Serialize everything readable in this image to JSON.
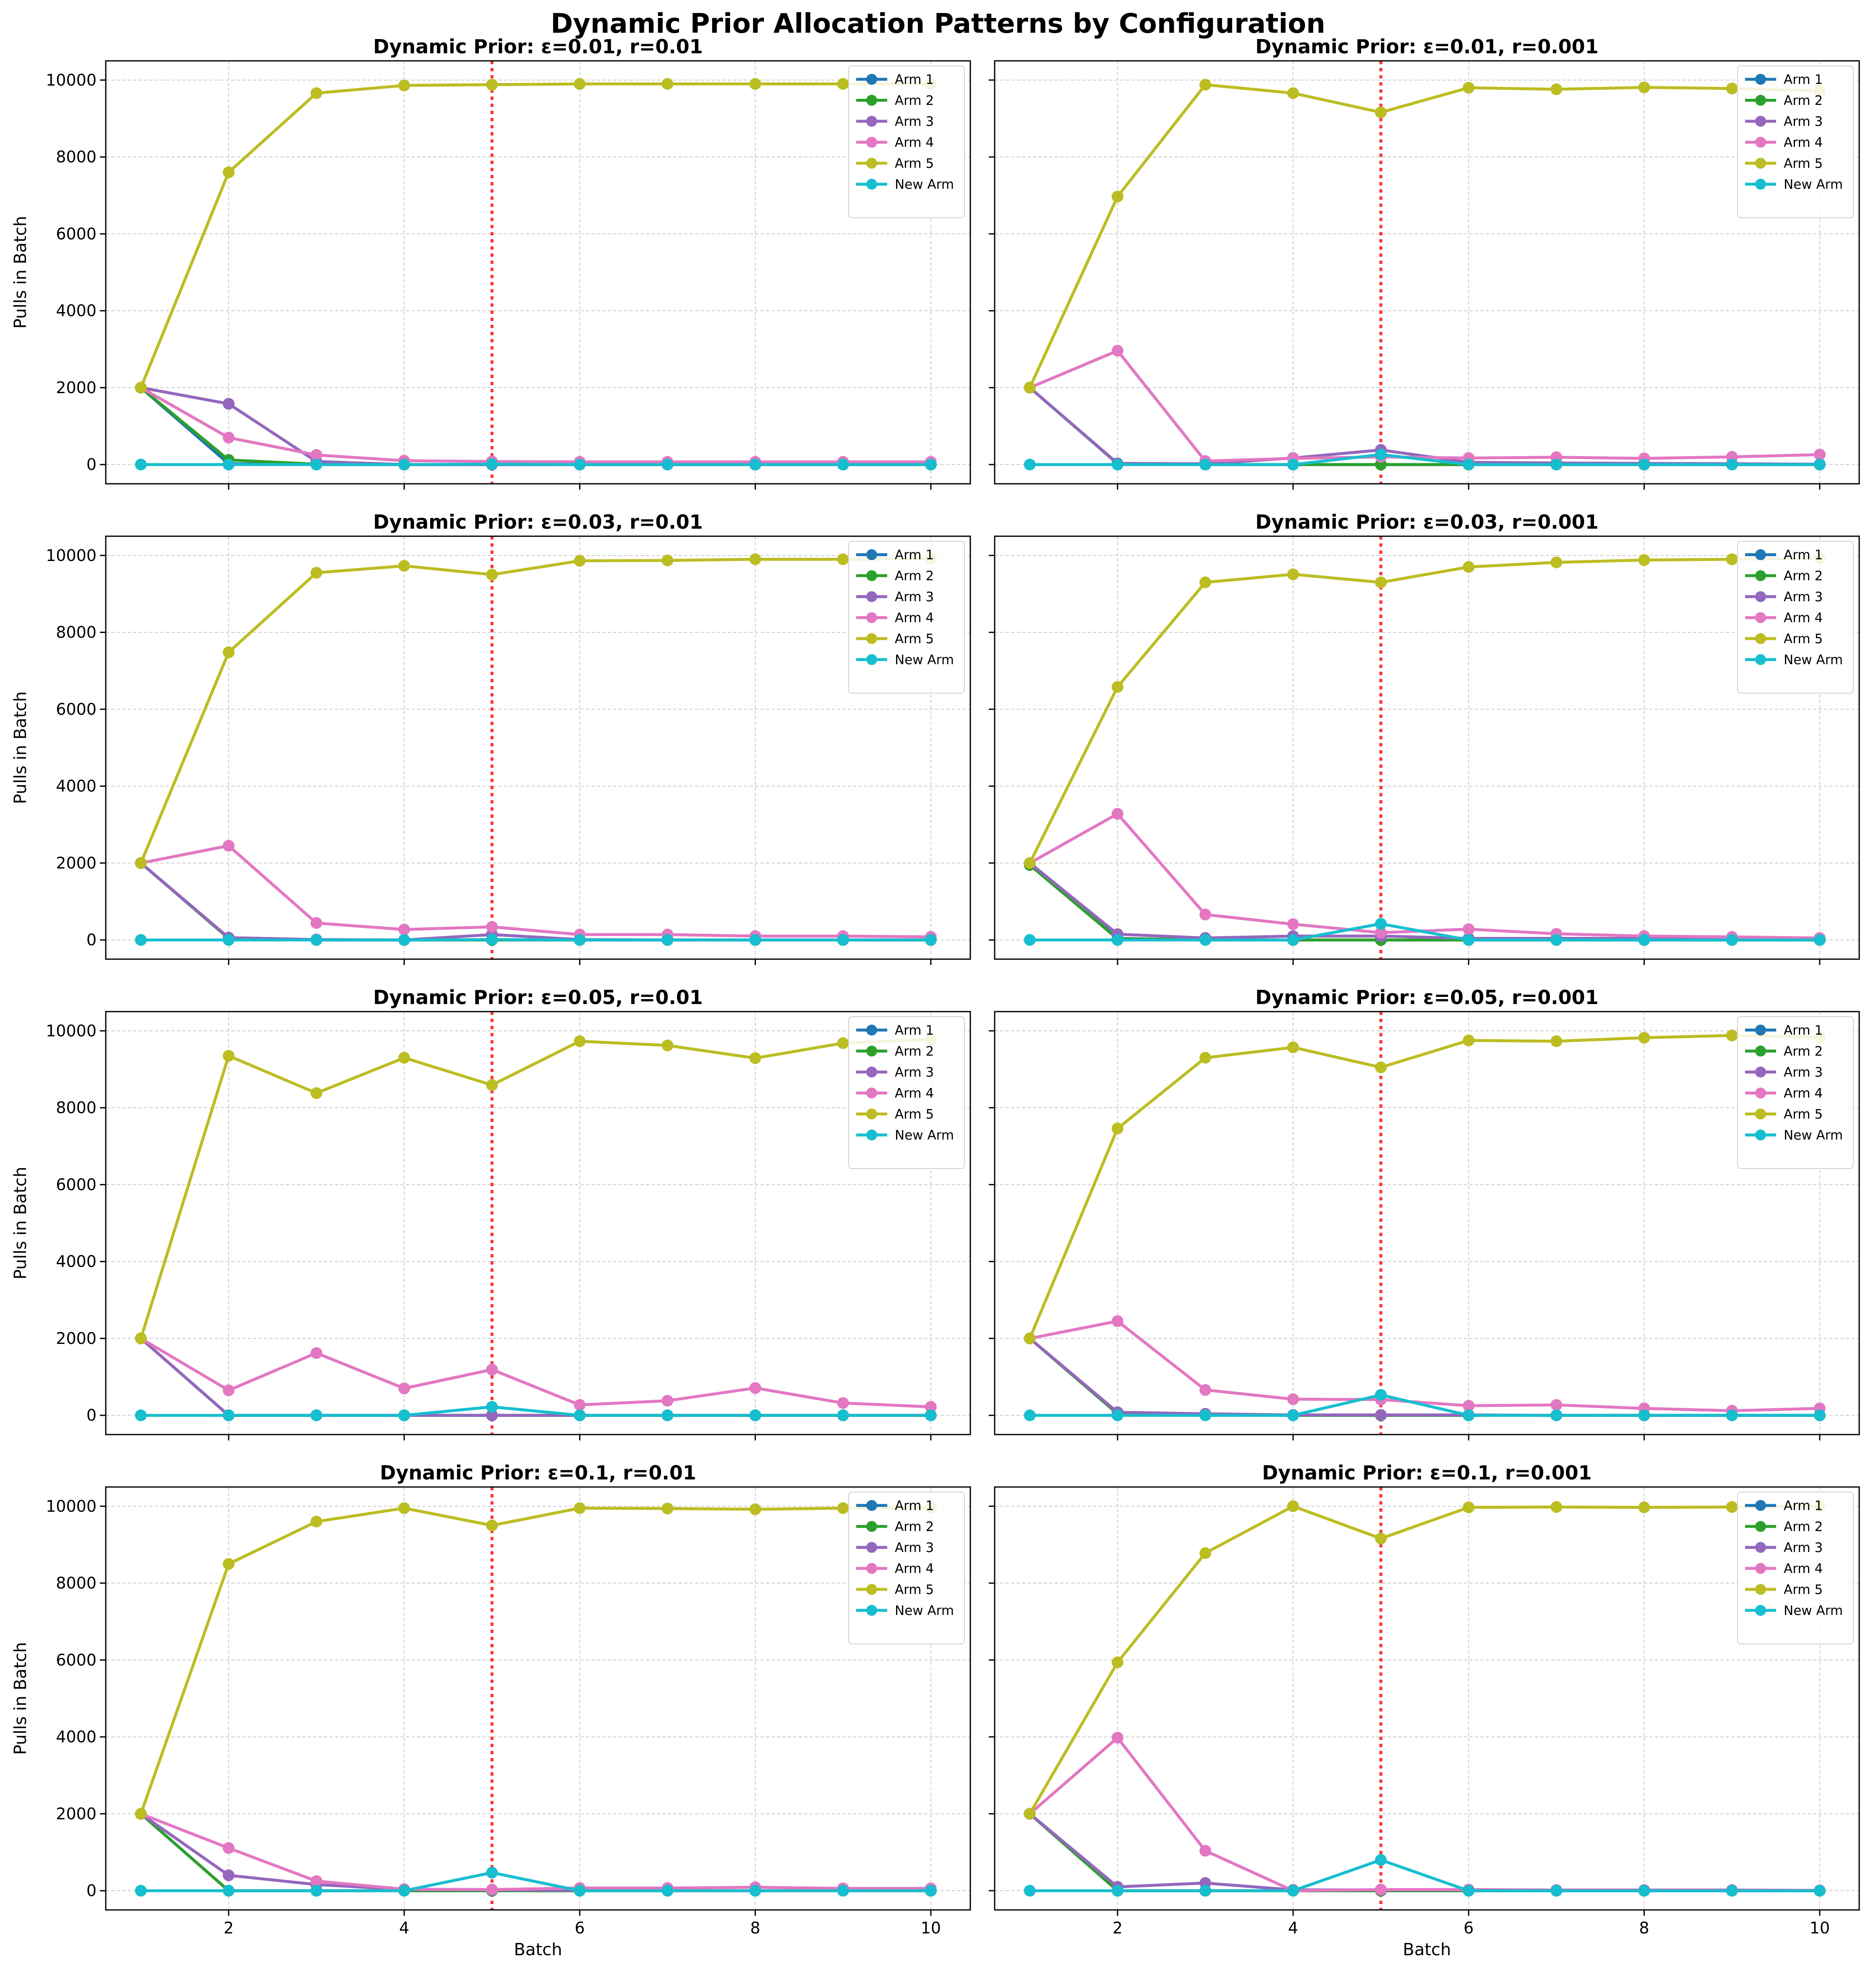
{
  "figure_title": "Dynamic Prior Allocation Patterns by Configuration",
  "colors": {
    "arm1": "#1f77b4",
    "arm2": "#2ca02c",
    "arm3": "#9467bd",
    "arm4": "#e377c2",
    "arm5": "#bcbd22",
    "new_arm": "#17becf",
    "change_line": "#ff3333",
    "grid": "#cccccc"
  },
  "chart_data": [
    {
      "type": "line",
      "title": "Dynamic Prior: ε=0.01, r=0.01",
      "xlabel": "",
      "ylabel": "Pulls in Batch",
      "x": [
        1,
        2,
        3,
        4,
        5,
        6,
        7,
        8,
        9,
        10
      ],
      "xlim": [
        0.6,
        10.45
      ],
      "ylim": [
        -500,
        10500
      ],
      "xticks": [
        "2",
        "4",
        "6",
        "8",
        "10"
      ],
      "yticks": [
        "0",
        "2000",
        "4000",
        "6000",
        "8000",
        "10000"
      ],
      "vline_x": 5,
      "grid": true,
      "legend": "top-right",
      "series": [
        {
          "name": "Arm 1",
          "values": [
            2000,
            20,
            0,
            0,
            0,
            0,
            0,
            0,
            0,
            0
          ]
        },
        {
          "name": "Arm 2",
          "values": [
            2000,
            120,
            10,
            0,
            0,
            0,
            0,
            0,
            0,
            0
          ]
        },
        {
          "name": "Arm 3",
          "values": [
            2000,
            1580,
            80,
            0,
            0,
            0,
            0,
            0,
            0,
            0
          ]
        },
        {
          "name": "Arm 4",
          "values": [
            2000,
            700,
            250,
            100,
            80,
            70,
            70,
            70,
            70,
            70
          ]
        },
        {
          "name": "Arm 5",
          "values": [
            2000,
            7600,
            9660,
            9860,
            9880,
            9900,
            9900,
            9900,
            9900,
            9900
          ]
        },
        {
          "name": "New Arm",
          "values": [
            0,
            0,
            0,
            0,
            10,
            0,
            0,
            0,
            0,
            0
          ]
        }
      ]
    },
    {
      "type": "line",
      "title": "Dynamic Prior: ε=0.01, r=0.001",
      "xlabel": "",
      "ylabel": "",
      "x": [
        1,
        2,
        3,
        4,
        5,
        6,
        7,
        8,
        9,
        10
      ],
      "xlim": [
        0.6,
        10.45
      ],
      "ylim": [
        -500,
        10500
      ],
      "xticks": [
        "2",
        "4",
        "6",
        "8",
        "10"
      ],
      "yticks": [
        "0",
        "2000",
        "4000",
        "6000",
        "8000",
        "10000"
      ],
      "vline_x": 5,
      "grid": true,
      "legend": "top-right",
      "series": [
        {
          "name": "Arm 1",
          "values": [
            2000,
            30,
            0,
            0,
            0,
            0,
            0,
            0,
            0,
            0
          ]
        },
        {
          "name": "Arm 2",
          "values": [
            2000,
            20,
            0,
            0,
            0,
            0,
            0,
            0,
            0,
            0
          ]
        },
        {
          "name": "Arm 3",
          "values": [
            2000,
            30,
            20,
            170,
            380,
            60,
            40,
            30,
            20,
            10
          ]
        },
        {
          "name": "Arm 4",
          "values": [
            2000,
            2960,
            90,
            160,
            200,
            170,
            190,
            160,
            200,
            260
          ]
        },
        {
          "name": "Arm 5",
          "values": [
            2000,
            6970,
            9880,
            9660,
            9160,
            9800,
            9760,
            9810,
            9780,
            9720
          ]
        },
        {
          "name": "New Arm",
          "values": [
            0,
            0,
            0,
            0,
            260,
            0,
            0,
            0,
            0,
            0
          ]
        }
      ]
    },
    {
      "type": "line",
      "title": "Dynamic Prior: ε=0.03, r=0.01",
      "xlabel": "",
      "ylabel": "Pulls in Batch",
      "x": [
        1,
        2,
        3,
        4,
        5,
        6,
        7,
        8,
        9,
        10
      ],
      "xlim": [
        0.6,
        10.45
      ],
      "ylim": [
        -500,
        10500
      ],
      "xticks": [
        "2",
        "4",
        "6",
        "8",
        "10"
      ],
      "yticks": [
        "0",
        "2000",
        "4000",
        "6000",
        "8000",
        "10000"
      ],
      "vline_x": 5,
      "grid": true,
      "legend": "top-right",
      "series": [
        {
          "name": "Arm 1",
          "values": [
            2000,
            40,
            0,
            0,
            0,
            0,
            0,
            0,
            0,
            0
          ]
        },
        {
          "name": "Arm 2",
          "values": [
            2000,
            40,
            0,
            0,
            0,
            0,
            0,
            0,
            0,
            0
          ]
        },
        {
          "name": "Arm 3",
          "values": [
            2000,
            60,
            10,
            0,
            140,
            10,
            0,
            0,
            0,
            0
          ]
        },
        {
          "name": "Arm 4",
          "values": [
            2000,
            2450,
            440,
            270,
            340,
            140,
            140,
            100,
            100,
            80
          ]
        },
        {
          "name": "Arm 5",
          "values": [
            2000,
            7480,
            9550,
            9730,
            9500,
            9860,
            9870,
            9900,
            9900,
            9920
          ]
        },
        {
          "name": "New Arm",
          "values": [
            0,
            0,
            0,
            0,
            10,
            0,
            0,
            0,
            0,
            0
          ]
        }
      ]
    },
    {
      "type": "line",
      "title": "Dynamic Prior: ε=0.03, r=0.001",
      "xlabel": "",
      "ylabel": "",
      "x": [
        1,
        2,
        3,
        4,
        5,
        6,
        7,
        8,
        9,
        10
      ],
      "xlim": [
        0.6,
        10.45
      ],
      "ylim": [
        -500,
        10500
      ],
      "xticks": [
        "2",
        "4",
        "6",
        "8",
        "10"
      ],
      "yticks": [
        "0",
        "2000",
        "4000",
        "6000",
        "8000",
        "10000"
      ],
      "vline_x": 5,
      "grid": true,
      "legend": "top-right",
      "series": [
        {
          "name": "Arm 1",
          "values": [
            2000,
            40,
            0,
            0,
            0,
            0,
            0,
            0,
            0,
            0
          ]
        },
        {
          "name": "Arm 2",
          "values": [
            1950,
            30,
            10,
            0,
            0,
            0,
            0,
            0,
            0,
            0
          ]
        },
        {
          "name": "Arm 3",
          "values": [
            2000,
            150,
            50,
            100,
            100,
            40,
            40,
            40,
            40,
            40
          ]
        },
        {
          "name": "Arm 4",
          "values": [
            2000,
            3280,
            660,
            410,
            190,
            280,
            160,
            100,
            80,
            50
          ]
        },
        {
          "name": "Arm 5",
          "values": [
            2000,
            6580,
            9300,
            9510,
            9300,
            9700,
            9820,
            9880,
            9900,
            9930
          ]
        },
        {
          "name": "New Arm",
          "values": [
            0,
            0,
            0,
            0,
            420,
            0,
            0,
            0,
            0,
            0
          ]
        }
      ]
    },
    {
      "type": "line",
      "title": "Dynamic Prior: ε=0.05, r=0.01",
      "xlabel": "",
      "ylabel": "Pulls in Batch",
      "x": [
        1,
        2,
        3,
        4,
        5,
        6,
        7,
        8,
        9,
        10
      ],
      "xlim": [
        0.6,
        10.45
      ],
      "ylim": [
        -500,
        10500
      ],
      "xticks": [
        "2",
        "4",
        "6",
        "8",
        "10"
      ],
      "yticks": [
        "0",
        "2000",
        "4000",
        "6000",
        "8000",
        "10000"
      ],
      "vline_x": 5,
      "grid": true,
      "legend": "top-right",
      "series": [
        {
          "name": "Arm 1",
          "values": [
            2000,
            0,
            0,
            0,
            0,
            0,
            0,
            0,
            0,
            0
          ]
        },
        {
          "name": "Arm 2",
          "values": [
            2000,
            0,
            0,
            0,
            0,
            0,
            0,
            0,
            0,
            0
          ]
        },
        {
          "name": "Arm 3",
          "values": [
            2000,
            0,
            0,
            0,
            0,
            0,
            0,
            0,
            0,
            0
          ]
        },
        {
          "name": "Arm 4",
          "values": [
            2000,
            650,
            1620,
            700,
            1190,
            270,
            380,
            710,
            320,
            220
          ]
        },
        {
          "name": "Arm 5",
          "values": [
            2000,
            9350,
            8380,
            9300,
            8590,
            9730,
            9620,
            9290,
            9680,
            9780
          ]
        },
        {
          "name": "New Arm",
          "values": [
            0,
            0,
            0,
            0,
            220,
            0,
            0,
            0,
            0,
            0
          ]
        }
      ]
    },
    {
      "type": "line",
      "title": "Dynamic Prior: ε=0.05, r=0.001",
      "xlabel": "",
      "ylabel": "",
      "x": [
        1,
        2,
        3,
        4,
        5,
        6,
        7,
        8,
        9,
        10
      ],
      "xlim": [
        0.6,
        10.45
      ],
      "ylim": [
        -500,
        10500
      ],
      "xticks": [
        "2",
        "4",
        "6",
        "8",
        "10"
      ],
      "yticks": [
        "0",
        "2000",
        "4000",
        "6000",
        "8000",
        "10000"
      ],
      "vline_x": 5,
      "grid": true,
      "legend": "top-right",
      "series": [
        {
          "name": "Arm 1",
          "values": [
            2000,
            40,
            0,
            0,
            0,
            0,
            0,
            0,
            0,
            0
          ]
        },
        {
          "name": "Arm 2",
          "values": [
            2000,
            40,
            0,
            0,
            0,
            0,
            0,
            0,
            0,
            0
          ]
        },
        {
          "name": "Arm 3",
          "values": [
            2000,
            80,
            40,
            10,
            10,
            10,
            0,
            0,
            0,
            0
          ]
        },
        {
          "name": "Arm 4",
          "values": [
            2000,
            2450,
            660,
            420,
            410,
            250,
            270,
            180,
            120,
            180
          ]
        },
        {
          "name": "Arm 5",
          "values": [
            2000,
            7460,
            9300,
            9570,
            9050,
            9750,
            9730,
            9820,
            9880,
            9830
          ]
        },
        {
          "name": "New Arm",
          "values": [
            0,
            0,
            0,
            0,
            530,
            0,
            0,
            0,
            0,
            0
          ]
        }
      ]
    },
    {
      "type": "line",
      "title": "Dynamic Prior: ε=0.1, r=0.01",
      "xlabel": "Batch",
      "ylabel": "Pulls in Batch",
      "x": [
        1,
        2,
        3,
        4,
        5,
        6,
        7,
        8,
        9,
        10
      ],
      "xlim": [
        0.6,
        10.45
      ],
      "ylim": [
        -500,
        10500
      ],
      "xticks": [
        "2",
        "4",
        "6",
        "8",
        "10"
      ],
      "yticks": [
        "0",
        "2000",
        "4000",
        "6000",
        "8000",
        "10000"
      ],
      "vline_x": 5,
      "grid": true,
      "legend": "top-right",
      "series": [
        {
          "name": "Arm 1",
          "values": [
            2000,
            0,
            0,
            0,
            0,
            0,
            0,
            0,
            0,
            0
          ]
        },
        {
          "name": "Arm 2",
          "values": [
            2000,
            0,
            0,
            0,
            0,
            0,
            0,
            0,
            0,
            0
          ]
        },
        {
          "name": "Arm 3",
          "values": [
            2000,
            400,
            160,
            30,
            20,
            10,
            0,
            0,
            0,
            0
          ]
        },
        {
          "name": "Arm 4",
          "values": [
            2000,
            1110,
            250,
            40,
            30,
            70,
            70,
            90,
            60,
            60
          ]
        },
        {
          "name": "Arm 5",
          "values": [
            2000,
            8500,
            9600,
            9950,
            9500,
            9950,
            9940,
            9920,
            9950,
            9960
          ]
        },
        {
          "name": "New Arm",
          "values": [
            0,
            0,
            0,
            0,
            470,
            0,
            0,
            0,
            0,
            0
          ]
        }
      ]
    },
    {
      "type": "line",
      "title": "Dynamic Prior: ε=0.1, r=0.001",
      "xlabel": "Batch",
      "ylabel": "",
      "x": [
        1,
        2,
        3,
        4,
        5,
        6,
        7,
        8,
        9,
        10
      ],
      "xlim": [
        0.6,
        10.45
      ],
      "ylim": [
        -500,
        10500
      ],
      "xticks": [
        "2",
        "4",
        "6",
        "8",
        "10"
      ],
      "yticks": [
        "0",
        "2000",
        "4000",
        "6000",
        "8000",
        "10000"
      ],
      "vline_x": 5,
      "grid": true,
      "legend": "top-right",
      "series": [
        {
          "name": "Arm 1",
          "values": [
            2000,
            0,
            0,
            0,
            0,
            0,
            0,
            0,
            0,
            0
          ]
        },
        {
          "name": "Arm 2",
          "values": [
            2000,
            0,
            0,
            0,
            0,
            0,
            0,
            0,
            0,
            0
          ]
        },
        {
          "name": "Arm 3",
          "values": [
            2000,
            100,
            200,
            20,
            20,
            20,
            0,
            0,
            0,
            0
          ]
        },
        {
          "name": "Arm 4",
          "values": [
            2000,
            3980,
            1040,
            0,
            30,
            30,
            20,
            20,
            20,
            10
          ]
        },
        {
          "name": "Arm 5",
          "values": [
            2000,
            5940,
            8780,
            10000,
            9160,
            9970,
            9980,
            9970,
            9980,
            9990
          ]
        },
        {
          "name": "New Arm",
          "values": [
            0,
            0,
            0,
            0,
            800,
            0,
            0,
            0,
            0,
            0
          ]
        }
      ]
    }
  ]
}
